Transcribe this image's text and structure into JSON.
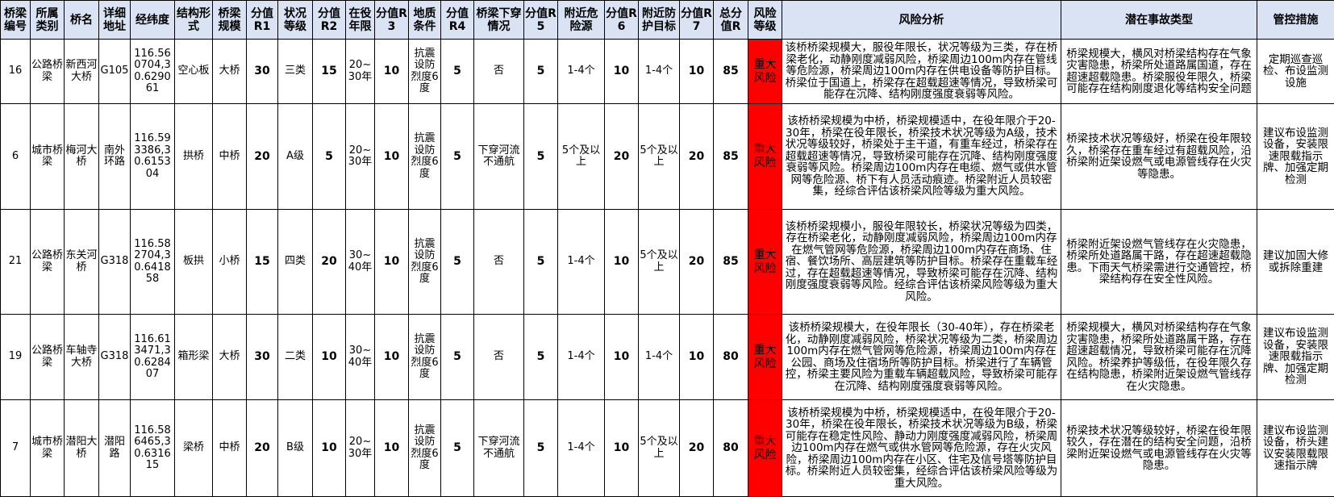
{
  "headers": [
    "桥梁编号",
    "所属类别",
    "桥名",
    "详细地址",
    "经纬度",
    "结构形式",
    "桥梁规模",
    "分值R1",
    "状况等级",
    "分值R2",
    "在役年限",
    "分值R3",
    "地质条件",
    "分值R4",
    "桥梁下穿情况",
    "分值R5",
    "附近危险源",
    "分值R6",
    "附近防护目标",
    "分值R7",
    "总分值R",
    "风险等级",
    "风险分析",
    "潜在事故类型",
    "管控措施"
  ],
  "colors": {
    "header_bg": "#dae3f3",
    "risk_level_bg": "#ff0000"
  },
  "rows": [
    [
      "16",
      "公路桥梁",
      "新西河大桥",
      "G105",
      "116.560704,30.629061",
      "空心板",
      "大桥",
      "30",
      "三类",
      "15",
      "20~30年",
      "10",
      "抗震设防烈度6度",
      "5",
      "否",
      "5",
      "1-4个",
      "10",
      "1-4个",
      "10",
      "85",
      "重大风险",
      "该桥桥梁规模大，服役年限长，状况等级为三类，存在桥梁老化，动静刚度减弱风险，桥梁周边100m内存在管线等危险源，桥梁周边100m内存在供电设备等防护目标。桥梁位于国道上，桥梁存在超载超速等情况，导致桥梁可能存在沉降、结构刚度强度衰弱等风险。",
      "桥梁规模大，横风对桥梁结构存在气象灾害隐患，桥梁所处道路属国道，存在超速超载隐患。桥梁服役年限久，桥梁可能存在结构刚度退化等结构安全问题",
      "定期巡查巡检、布设监测设施"
    ],
    [
      "6",
      "城市桥梁",
      "梅河大桥",
      "南外环路",
      "116.593386,30.615304",
      "拱桥",
      "中桥",
      "20",
      "A级",
      "5",
      "20~30年",
      "10",
      "抗震设防烈度6度",
      "5",
      "下穿河流不通航",
      "5",
      "5个及以上",
      "20",
      "5个及以上",
      "20",
      "85",
      "重大风险",
      "该桥桥梁规模为中桥，桥梁规模适中，在役年限介于20-30年，桥梁在役年限长，桥梁技术状况等级为A级，技术状况等级较好，桥梁处于主干道，有重车经过，桥梁存在超载超速等情况，导致桥梁可能存在沉降、结构刚度强度衰弱等风险。桥梁周边100m内存在电缆、燃气或供水管网等危险源、桥下有人员活动痕迹。桥梁附近人员较密集，经综合评估该桥梁风险等级为重大风险。",
      "桥梁技术状况等级好，桥梁在役年限较久，桥梁存在重车经过有超载风险，沿桥梁附近架设燃气或电源管线存在火灾等隐患。",
      "建议布设监测设备，安装限速限载指示牌、加强定期检测"
    ],
    [
      "21",
      "公路桥梁",
      "东关河桥",
      "G318",
      "116.582704,30.641858",
      "板拱",
      "小桥",
      "15",
      "四类",
      "20",
      "30~40年",
      "10",
      "抗震设防烈度6度",
      "5",
      "否",
      "5",
      "1-4个",
      "10",
      "5个及以上",
      "20",
      "85",
      "重大风险",
      "该桥桥梁规模小，服役年限较长，桥梁状况等级为四类，存在桥梁老化，动静刚度减弱风险，桥梁周边100m内存在燃气管网等危险源，桥梁周边100m内存在商场、住宿、餐饮场所、高层建筑等防护目标。桥梁存在重载车经过，存在超载超速等情况，导致桥梁可能存在沉降、结构刚度强度衰弱等风险。经综合评估该桥梁风险等级为重大风险。",
      "桥梁附近架设燃气管线存在火灾隐患，桥梁所处道路属干路，存在超速超载隐患。下雨天气桥梁需进行交通管控，桥梁结构存在安全性风险。",
      "建议加固大修或拆除重建"
    ],
    [
      "19",
      "公路桥梁",
      "车轴寺大桥",
      "G318",
      "116.613471,30.628407",
      "箱形梁",
      "大桥",
      "30",
      "二类",
      "10",
      "30~40年",
      "10",
      "抗震设防烈度6度",
      "5",
      "否",
      "5",
      "1-4个",
      "10",
      "1-4个",
      "10",
      "80",
      "重大风险",
      "该桥桥梁规模大，在役年限长（30-40年），存在桥梁老化，动静刚度减弱风险，桥梁状况等级为二类，桥梁周边100m内存在燃气管网等危险源，桥梁周边100m内存在公园、商场及住宿场所等防护目标。桥梁进行了车辆管控，桥梁主要风险为重载车辆超载风险，导致桥梁可能存在沉降、结构刚度强度衰弱等风险。",
      "桥梁规模大，横风对桥梁结构存在气象灾害隐患，桥梁所处道路属干路，存在超速超载情况，导致桥梁可能存在沉降风险。桥梁养护等级低，在役年限久存在结构隐患，桥梁附近架设燃气管线存在火灾隐患。",
      "建议布设监测设备，安装限速限载指示牌、加强定期检测"
    ],
    [
      "7",
      "城市桥梁",
      "潜阳大桥",
      "潜阳路",
      "116.586465,30.631615",
      "梁桥",
      "中桥",
      "20",
      "B级",
      "10",
      "20~30年",
      "10",
      "抗震设防烈度6度",
      "5",
      "下穿河流不通航",
      "5",
      "1-4个",
      "10",
      "5个及以上",
      "20",
      "80",
      "重大风险",
      "该桥桥梁规模为中桥，桥梁规模适中，在役年限介于20-30年，桥梁在役年限长，桥梁技术状况等级为B级，桥梁可能存在稳定性风险、静动力刚度强度减弱风险，桥梁周边100m内存在燃气或供水管网等危险源，存在火灾风险，桥梁周边100m内存在小区、住宅及信号塔等防护目标。桥梁附近人员较密集，经综合评估该桥梁风险等级为重大风险。",
      "桥梁技术状况等级较好，桥梁在役年限较久，存在潜在的结构安全问题，沿桥梁附近架设燃气或电源管线存在火灾等隐患。",
      "建议布设监测设备，桥头建议安装限载限速指示牌"
    ]
  ]
}
